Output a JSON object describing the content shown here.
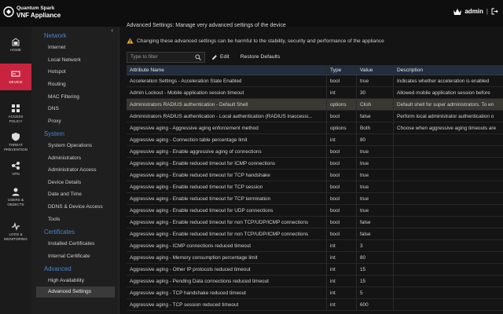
{
  "brand": {
    "line1": "Quantum Spark",
    "line2": "VNF Appliance"
  },
  "header": {
    "user": "admin",
    "separator": "|"
  },
  "rail": [
    {
      "label": "HOME",
      "icon": "home-icon"
    },
    {
      "label": "DEVICE",
      "icon": "device-icon",
      "active": true
    },
    {
      "label": "ACCESS POLICY",
      "icon": "access-policy-icon"
    },
    {
      "label": "THREAT PREVENTION",
      "icon": "threat-prevention-icon"
    },
    {
      "label": "VPN",
      "icon": "vpn-icon"
    },
    {
      "label": "USERS & OBJECTS",
      "icon": "users-objects-icon"
    },
    {
      "label": "LOGS & MONITORING",
      "icon": "logs-monitoring-icon"
    }
  ],
  "nav": {
    "collapse": "‹",
    "sections": [
      {
        "title": "Network",
        "items": [
          "Internet",
          "Local Network",
          "Hotspot",
          "Routing",
          "MAC Filtering",
          "DNS",
          "Proxy"
        ]
      },
      {
        "title": "System",
        "items": [
          "System Operations",
          "Administrators",
          "Administrator Access",
          "Device Details",
          "Date and Time",
          "DDNS & Device Access",
          "Tools"
        ]
      },
      {
        "title": "Certificates",
        "items": [
          "Installed Certificates",
          "Internal Certificate"
        ]
      },
      {
        "title": "Advanced",
        "items": [
          "High Availability",
          "Advanced Settings"
        ]
      }
    ],
    "active_item": "Advanced Settings"
  },
  "main": {
    "title": "Advanced Settings: Manage very advanced settings of the device",
    "warning": "Changing these advanced settings can be harmful to the stability, security and performance of the appliance",
    "filter_placeholder": "Type to filter",
    "edit_label": "Edit",
    "restore_label": "Restore Defaults",
    "columns": [
      "Attribute Name",
      "Type",
      "Value",
      "Description"
    ],
    "rows": [
      [
        "Acceleration Settings - Acceleration State Enabled",
        "bool",
        "true",
        "Indicates whether acceleration is enabled"
      ],
      [
        "Admin Lockout - Mobile application session timeout",
        "int",
        "30",
        "Allowed mobile application session before"
      ],
      [
        "Administrators RADIUS authentication - Default Shell",
        "options",
        "Clish",
        "Default shell for super administrators. To en"
      ],
      [
        "Administrators RADIUS authentication - Local authentication (RADIUS inaccessi...",
        "bool",
        "false",
        "Perform local administrator authentication o"
      ],
      [
        "Aggressive aging - Aggressive aging enforcement method",
        "options",
        "Both",
        "Choose when aggressive aging timeouts are"
      ],
      [
        "Aggressive aging - Connection table percentage limit",
        "int",
        "80",
        ""
      ],
      [
        "Aggressive aging - Enable aggressive aging of connections",
        "bool",
        "true",
        ""
      ],
      [
        "Aggressive aging - Enable reduced timeout for ICMP connections",
        "bool",
        "true",
        ""
      ],
      [
        "Aggressive aging - Enable reduced timeout for TCP handshake",
        "bool",
        "true",
        ""
      ],
      [
        "Aggressive aging - Enable reduced timeout for TCP session",
        "bool",
        "true",
        ""
      ],
      [
        "Aggressive aging - Enable reduced timeout for TCP termination",
        "bool",
        "true",
        ""
      ],
      [
        "Aggressive aging - Enable reduced timeout for UDP connections",
        "bool",
        "true",
        ""
      ],
      [
        "Aggressive aging - Enable reduced timeout for non TCP/UDP/ICMP connections",
        "bool",
        "false",
        ""
      ],
      [
        "Aggressive aging - Enable reduced timeout for non TCP/UDP/ICMP connections",
        "bool",
        "false",
        ""
      ],
      [
        "Aggressive aging - ICMP connections reduced timeout",
        "int",
        "3",
        ""
      ],
      [
        "Aggressive aging - Memory consumption percentage limit",
        "int",
        "80",
        ""
      ],
      [
        "Aggressive aging - Other IP protocols reduced timeout",
        "int",
        "15",
        ""
      ],
      [
        "Aggressive aging - Pending Data connections reduced timeout",
        "int",
        "15",
        ""
      ],
      [
        "Aggressive aging - TCP handshake reduced timeout",
        "int",
        "5",
        ""
      ],
      [
        "Aggressive aging - TCP session reduced timeout",
        "int",
        "600",
        ""
      ]
    ],
    "selected_row": 2
  },
  "colors": {
    "accent_red": "#c9243f",
    "section_blue": "#4b84c8",
    "header_bg": "#222d3d"
  }
}
